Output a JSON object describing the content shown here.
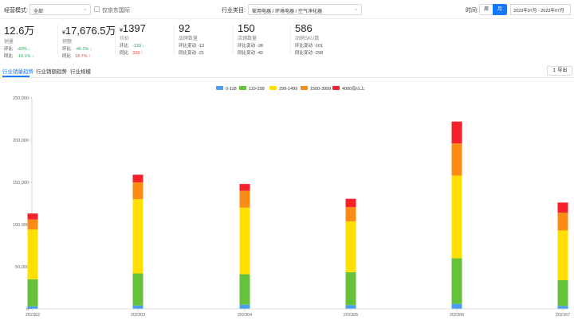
{
  "filters": {
    "mode_label": "经营模式:",
    "mode_value": "全部",
    "jd_only_label": "仅京东国际",
    "category_label": "行业类目:",
    "category_value": "家用电器 / 环境电器 / 空气净化器",
    "time_label": "时间:",
    "week_label": "周",
    "month_label": "月",
    "date_range": "2023年07月 - 2023年07月",
    "calendar_icon": "calendar-icon"
  },
  "kpis": [
    {
      "value": "12.6万",
      "currency": "",
      "name": "销量",
      "r1_label": "环比",
      "r1_value": "-43% ↓",
      "r1_dir": "down",
      "r2_label": "同比",
      "r2_value": "-10.1% ↓",
      "r2_dir": "down"
    },
    {
      "value": "17,676.5万",
      "currency": "¥",
      "name": "销额",
      "r1_label": "环比",
      "r1_value": "-46.2% ↓",
      "r1_dir": "down",
      "r2_label": "同比",
      "r2_value": "18.7% ↑",
      "r2_dir": "up"
    },
    {
      "value": "1397",
      "currency": "¥",
      "name": "均价",
      "r1_label": "环比",
      "r1_value": "-139 ↓",
      "r1_dir": "down",
      "r2_label": "同比",
      "r2_value": "339 ↑",
      "r2_dir": "up"
    },
    {
      "value": "92",
      "currency": "",
      "name": "品牌数量",
      "r1_label": "环比变动",
      "r1_value": "-13",
      "r1_dir": "",
      "r2_label": "同比变动",
      "r2_value": "-21",
      "r2_dir": ""
    },
    {
      "value": "150",
      "currency": "",
      "name": "店铺数量",
      "r1_label": "环比变动",
      "r1_value": "-28",
      "r1_dir": "",
      "r2_label": "同比变动",
      "r2_value": "-42",
      "r2_dir": ""
    },
    {
      "value": "586",
      "currency": "",
      "name": "动销SKU数",
      "r1_label": "环比变动",
      "r1_value": "-101",
      "r1_dir": "",
      "r2_label": "同比变动",
      "r2_value": "-298",
      "r2_dir": ""
    }
  ],
  "tabs": [
    "行业销量趋势",
    "行业销额趋势",
    "行业规模"
  ],
  "export_label": "导出",
  "colors": {
    "accent": "#1677ff",
    "s1": "#4a9ff5",
    "s2": "#66c23a",
    "s3": "#ffe000",
    "s4": "#fa8c16",
    "s5": "#f5222d"
  },
  "chart_data": {
    "type": "bar",
    "stacked": true,
    "categories": [
      "202302",
      "202303",
      "202304",
      "202305",
      "202306",
      "202307"
    ],
    "series": [
      {
        "name": "0-118",
        "color": "#4a9ff5",
        "values": [
          3000,
          4000,
          5000,
          4500,
          6000,
          3500
        ]
      },
      {
        "name": "119-298",
        "color": "#66c23a",
        "values": [
          32000,
          38000,
          36000,
          39000,
          54000,
          30500
        ]
      },
      {
        "name": "299-1499",
        "color": "#ffe000",
        "values": [
          59000,
          88000,
          79000,
          60000,
          98000,
          59000
        ]
      },
      {
        "name": "1500-3999",
        "color": "#fa8c16",
        "values": [
          12000,
          20000,
          20000,
          17000,
          38000,
          21000
        ]
      },
      {
        "name": "4000及以上",
        "color": "#f5222d",
        "values": [
          7000,
          9000,
          8000,
          10000,
          26000,
          12000
        ]
      }
    ],
    "yticks": [
      "0",
      "50,000",
      "100,000",
      "150,000",
      "200,000",
      "250,000"
    ],
    "ylim": [
      0,
      250000
    ],
    "legend_position": "top-center",
    "grid": false
  }
}
